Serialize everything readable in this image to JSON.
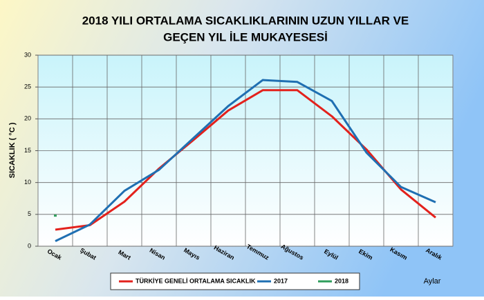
{
  "chart_data": {
    "type": "line",
    "title_lines": [
      "2018 YILI ORTALAMA SICAKLIKLARININ UZUN YILLAR VE",
      "GEÇEN  YIL İLE MUKAYESESİ"
    ],
    "y_label": "SICAKLIK ( °C )",
    "x_label": "Aylar",
    "categories": [
      "Ocak",
      "Şubat",
      "Mart",
      "Nisan",
      "Mayıs",
      "Haziran",
      "Temmuz",
      "Ağustos",
      "Eylül",
      "Ekim",
      "Kasım",
      "Aralık"
    ],
    "series": [
      {
        "name": "TÜRKİYE GENELİ ORTALAMA  SICAKLIK",
        "color": "#e3211c",
        "values": [
          2.6,
          3.3,
          7.0,
          12.2,
          16.7,
          21.3,
          24.5,
          24.5,
          20.4,
          15.2,
          8.9,
          4.5
        ]
      },
      {
        "name": "2017",
        "color": "#1f6fb2",
        "values": [
          0.8,
          3.4,
          8.7,
          12.0,
          17.0,
          22.0,
          26.1,
          25.8,
          22.8,
          14.7,
          9.3,
          6.9
        ]
      },
      {
        "name": "2018",
        "color": "#2e9e5b",
        "values": [
          4.8,
          null,
          null,
          null,
          null,
          null,
          null,
          null,
          null,
          null,
          null,
          null
        ]
      }
    ],
    "ylim": [
      0,
      30
    ],
    "yticks": [
      0,
      5,
      10,
      15,
      20,
      25,
      30
    ],
    "grid": true,
    "legend": "bottom"
  }
}
